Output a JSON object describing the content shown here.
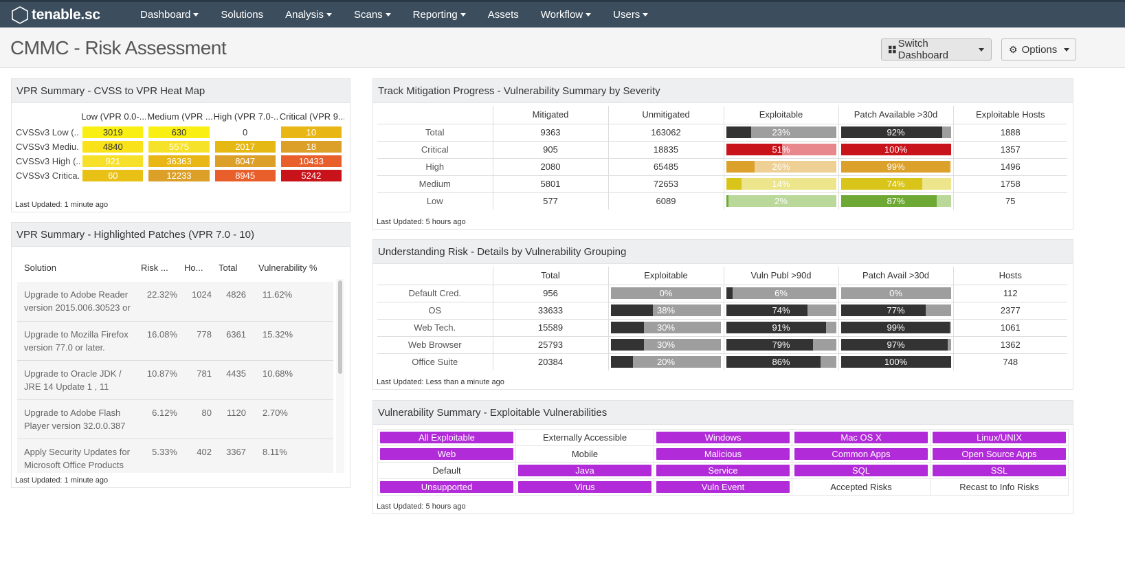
{
  "nav": {
    "logo": "tenable.sc",
    "items": [
      {
        "label": "Dashboard",
        "dropdown": true
      },
      {
        "label": "Solutions",
        "dropdown": false
      },
      {
        "label": "Analysis",
        "dropdown": true
      },
      {
        "label": "Scans",
        "dropdown": true
      },
      {
        "label": "Reporting",
        "dropdown": true
      },
      {
        "label": "Assets",
        "dropdown": false
      },
      {
        "label": "Workflow",
        "dropdown": true
      },
      {
        "label": "Users",
        "dropdown": true
      }
    ]
  },
  "page": {
    "title": "CMMC - Risk Assessment",
    "switch_label": "Switch Dashboard",
    "options_label": "Options"
  },
  "heatmap": {
    "title": "VPR Summary - CVSS to VPR Heat Map",
    "columns": [
      "Low (VPR 0.0-...",
      "Medium (VPR ...",
      "High (VPR 7.0-...",
      "Critical (VPR 9...."
    ],
    "rows": [
      {
        "label": "CVSSv3 Low (...",
        "cells": [
          {
            "v": "3019",
            "c": "#f9ef12",
            "t": "#333"
          },
          {
            "v": "630",
            "c": "#f9ef12",
            "t": "#333"
          },
          {
            "v": "0",
            "c": "",
            "t": "#333"
          },
          {
            "v": "10",
            "c": "#e8b615",
            "t": "#fff"
          }
        ]
      },
      {
        "label": "CVSSv3 Mediu...",
        "cells": [
          {
            "v": "4840",
            "c": "#f9e21a",
            "t": "#333"
          },
          {
            "v": "5575",
            "c": "#f7e22a",
            "t": "#fff"
          },
          {
            "v": "2017",
            "c": "#e6b814",
            "t": "#fff"
          },
          {
            "v": "18",
            "c": "#dc9f28",
            "t": "#fff"
          }
        ]
      },
      {
        "label": "CVSSv3 High (...",
        "cells": [
          {
            "v": "921",
            "c": "#f7e02a",
            "t": "#fff"
          },
          {
            "v": "36363",
            "c": "#e8b615",
            "t": "#fff"
          },
          {
            "v": "8047",
            "c": "#dc9f28",
            "t": "#fff"
          },
          {
            "v": "10433",
            "c": "#e85f2b",
            "t": "#fff"
          }
        ]
      },
      {
        "label": "CVSSv3 Critica...",
        "cells": [
          {
            "v": "60",
            "c": "#e9c015",
            "t": "#fff"
          },
          {
            "v": "12233",
            "c": "#dc9f28",
            "t": "#fff"
          },
          {
            "v": "8945",
            "c": "#e85f2b",
            "t": "#fff"
          },
          {
            "v": "5242",
            "c": "#c8131b",
            "t": "#fff"
          }
        ]
      }
    ],
    "updated": "Last Updated: 1 minute ago"
  },
  "patches": {
    "title": "VPR Summary - Highlighted Patches (VPR 7.0 - 10)",
    "columns": [
      "Solution",
      "Risk ...",
      "Ho...",
      "Total",
      "Vulnerability %"
    ],
    "rows": [
      {
        "solution": "Upgrade to Adobe Reader version 2015.006.30523 or",
        "risk": "22.32%",
        "hosts": "1024",
        "total": "4826",
        "vuln": "11.62%"
      },
      {
        "solution": "Upgrade to Mozilla Firefox version 77.0 or later.",
        "risk": "16.08%",
        "hosts": "778",
        "total": "6361",
        "vuln": "15.32%"
      },
      {
        "solution": "Upgrade to Oracle JDK / JRE 14 Update 1 , 11",
        "risk": "10.87%",
        "hosts": "781",
        "total": "4435",
        "vuln": "10.68%"
      },
      {
        "solution": "Upgrade to Adobe Flash Player version 32.0.0.387",
        "risk": "6.12%",
        "hosts": "80",
        "total": "1120",
        "vuln": "2.70%"
      },
      {
        "solution": "Apply Security Updates for Microsoft Office Products",
        "risk": "5.33%",
        "hosts": "402",
        "total": "3367",
        "vuln": "8.11%"
      }
    ],
    "updated": "Last Updated: 1 minute ago"
  },
  "mitigation": {
    "title": "Track Mitigation Progress - Vulnerability Summary by Severity",
    "columns": [
      "",
      "Mitigated",
      "Unmitigated",
      "Exploitable",
      "Patch Available >30d",
      "Exploitable Hosts"
    ],
    "rows": [
      {
        "label": "Total",
        "mitigated": "9363",
        "unmitigated": "163062",
        "exploitable": {
          "text": "23%",
          "pct": 23,
          "fg": "#333333",
          "bg": "#9e9e9e"
        },
        "patch": {
          "text": "92%",
          "pct": 92,
          "fg": "#333333",
          "bg": "#9e9e9e"
        },
        "hosts": "1888"
      },
      {
        "label": "Critical",
        "mitigated": "905",
        "unmitigated": "18835",
        "exploitable": {
          "text": "51%",
          "pct": 51,
          "fg": "#c8131b",
          "bg": "#e8888c"
        },
        "patch": {
          "text": "100%",
          "pct": 100,
          "fg": "#c8131b",
          "bg": "#e8888c"
        },
        "hosts": "1357"
      },
      {
        "label": "High",
        "mitigated": "2080",
        "unmitigated": "65485",
        "exploitable": {
          "text": "26%",
          "pct": 26,
          "fg": "#dca12b",
          "bg": "#eecf94"
        },
        "patch": {
          "text": "99%",
          "pct": 99,
          "fg": "#dca12b",
          "bg": "#eecf94"
        },
        "hosts": "1496"
      },
      {
        "label": "Medium",
        "mitigated": "5801",
        "unmitigated": "72653",
        "exploitable": {
          "text": "14%",
          "pct": 14,
          "fg": "#d9c419",
          "bg": "#ede58b"
        },
        "patch": {
          "text": "74%",
          "pct": 74,
          "fg": "#d9c419",
          "bg": "#ede58b"
        },
        "hosts": "1758"
      },
      {
        "label": "Low",
        "mitigated": "577",
        "unmitigated": "6089",
        "exploitable": {
          "text": "2%",
          "pct": 2,
          "fg": "#6ea935",
          "bg": "#b9d89a"
        },
        "patch": {
          "text": "87%",
          "pct": 87,
          "fg": "#6ea935",
          "bg": "#b9d89a"
        },
        "hosts": "75"
      }
    ],
    "updated": "Last Updated: 5 hours ago"
  },
  "risk": {
    "title": "Understanding Risk - Details by Vulnerability Grouping",
    "columns": [
      "",
      "Total",
      "Exploitable",
      "Vuln Publ >90d",
      "Patch Avail >30d",
      "Hosts"
    ],
    "rows": [
      {
        "label": "Default Cred.",
        "total": "956",
        "exploitable": {
          "text": "0%",
          "pct": 0
        },
        "publ": {
          "text": "6%",
          "pct": 6
        },
        "patch": {
          "text": "0%",
          "pct": 0
        },
        "hosts": "112"
      },
      {
        "label": "OS",
        "total": "33633",
        "exploitable": {
          "text": "38%",
          "pct": 38
        },
        "publ": {
          "text": "74%",
          "pct": 74
        },
        "patch": {
          "text": "77%",
          "pct": 77
        },
        "hosts": "2377"
      },
      {
        "label": "Web Tech.",
        "total": "15589",
        "exploitable": {
          "text": "30%",
          "pct": 30
        },
        "publ": {
          "text": "91%",
          "pct": 91
        },
        "patch": {
          "text": "99%",
          "pct": 99
        },
        "hosts": "1061"
      },
      {
        "label": "Web Browser",
        "total": "25793",
        "exploitable": {
          "text": "30%",
          "pct": 30
        },
        "publ": {
          "text": "79%",
          "pct": 79
        },
        "patch": {
          "text": "97%",
          "pct": 97
        },
        "hosts": "1362"
      },
      {
        "label": "Office Suite",
        "total": "20384",
        "exploitable": {
          "text": "20%",
          "pct": 20
        },
        "publ": {
          "text": "86%",
          "pct": 86
        },
        "patch": {
          "text": "100%",
          "pct": 100
        },
        "hosts": "748"
      }
    ],
    "bar_colors": {
      "fg": "#333333",
      "bg": "#9e9e9e"
    },
    "updated": "Last Updated: Less than a minute ago"
  },
  "exploitable": {
    "title": "Vulnerability Summary - Exploitable Vulnerabilities",
    "rows": [
      [
        {
          "label": "All Exploitable",
          "pill": true
        },
        {
          "label": "Externally Accessible",
          "pill": false
        },
        {
          "label": "Windows",
          "pill": true
        },
        {
          "label": "Mac OS X",
          "pill": true
        },
        {
          "label": "Linux/UNIX",
          "pill": true
        }
      ],
      [
        {
          "label": "Web",
          "pill": true
        },
        {
          "label": "Mobile",
          "pill": false
        },
        {
          "label": "Malicious",
          "pill": true
        },
        {
          "label": "Common Apps",
          "pill": true
        },
        {
          "label": "Open Source Apps",
          "pill": true
        }
      ],
      [
        {
          "label": "Default",
          "pill": false
        },
        {
          "label": "Java",
          "pill": true
        },
        {
          "label": "Service",
          "pill": true
        },
        {
          "label": "SQL",
          "pill": true
        },
        {
          "label": "SSL",
          "pill": true
        }
      ],
      [
        {
          "label": "Unsupported",
          "pill": true
        },
        {
          "label": "Virus",
          "pill": true
        },
        {
          "label": "Vuln Event",
          "pill": true
        },
        {
          "label": "Accepted Risks",
          "pill": false
        },
        {
          "label": "Recast to Info Risks",
          "pill": false
        }
      ]
    ],
    "pill_color": "#b22bd9",
    "updated": "Last Updated: 5 hours ago"
  }
}
